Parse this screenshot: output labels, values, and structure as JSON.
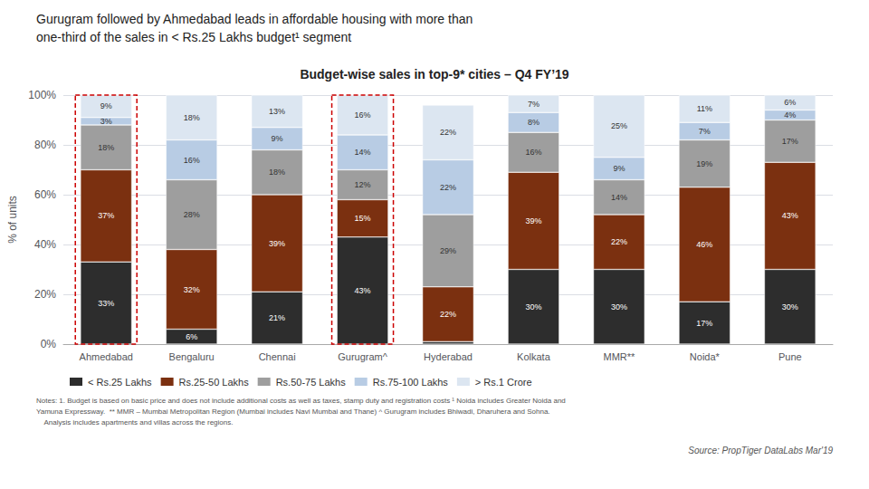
{
  "chart_data": {
    "type": "bar",
    "stacked": true,
    "title": "Budget-wise sales in top-9* cities – Q4 FY’19",
    "header": [
      "Gurugram followed by Ahmedabad leads in affordable housing with more than",
      "one-third of the sales in < Rs.25 Lakhs budget¹ segment"
    ],
    "ylabel": "% of units",
    "categories": [
      "Ahmedabad",
      "Bengaluru",
      "Chennai",
      "Gurugram^",
      "Hyderabad",
      "Kolkata",
      "MMR**",
      "Noida*",
      "Pune"
    ],
    "series": [
      {
        "name": "< Rs.25 Lakhs",
        "color": "#2d2d2d",
        "values": [
          33,
          6,
          21,
          43,
          1,
          30,
          30,
          17,
          30
        ],
        "value_labels": [
          "33%",
          "6%",
          "21%",
          "43%",
          null,
          "30%",
          "30%",
          "17%",
          "30%"
        ]
      },
      {
        "name": "Rs.25-50 Lakhs",
        "color": "#7b3010",
        "values": [
          37,
          32,
          39,
          15,
          22,
          39,
          22,
          46,
          43
        ],
        "value_labels": [
          "37%",
          "32%",
          "39%",
          "15%",
          "22%",
          "39%",
          "22%",
          "46%",
          "43%"
        ]
      },
      {
        "name": "Rs.50-75 Lakhs",
        "color": "#9e9e9e",
        "values": [
          18,
          28,
          18,
          12,
          29,
          16,
          14,
          19,
          17
        ],
        "value_labels": [
          "18%",
          "28%",
          "18%",
          "12%",
          "29%",
          "16%",
          "14%",
          "19%",
          "17%"
        ]
      },
      {
        "name": "Rs.75-100 Lakhs",
        "color": "#b8cce4",
        "values": [
          3,
          16,
          9,
          14,
          22,
          8,
          9,
          7,
          4
        ],
        "value_labels": [
          "3%",
          "16%",
          "9%",
          "14%",
          "22%",
          "8%",
          "9%",
          "7%",
          "4%"
        ]
      },
      {
        "name": "> Rs.1 Crore",
        "color": "#dce6f1",
        "values": [
          9,
          18,
          13,
          16,
          22,
          7,
          25,
          11,
          6
        ],
        "value_labels": [
          "9%",
          "18%",
          "13%",
          "16%",
          "22%",
          "7%",
          "25%",
          "11%",
          "6%"
        ]
      }
    ],
    "data_labels": true,
    "ylim": [
      0,
      100
    ],
    "yticks": [
      {
        "value": 0,
        "label": "0%"
      },
      {
        "value": 20,
        "label": "20%"
      },
      {
        "value": 40,
        "label": "40%"
      },
      {
        "value": 60,
        "label": "60%"
      },
      {
        "value": 80,
        "label": "80%"
      },
      {
        "value": 100,
        "label": "100%"
      }
    ],
    "grid": true,
    "legend": "bottom",
    "highlight": [
      "Ahmedabad",
      "Gurugram^"
    ],
    "highlight_color": "#cc0000",
    "notes": "Notes: 1. Budget is based on basic price and does not include additional costs as well as taxes, stamp duty and registration costs ¹ Noida includes Greater Noida and\nYamuna Expressway.  ** MMR – Mumbai Metropolitan Region (Mumbai includes Navi Mumbai and Thane) ^ Gurugram includes Bhiwadi, Dharuhera and Sohna.\n    Analysis includes apartments and villas across the regions.",
    "source": "Source: PropTiger DataLabs Mar'19"
  }
}
